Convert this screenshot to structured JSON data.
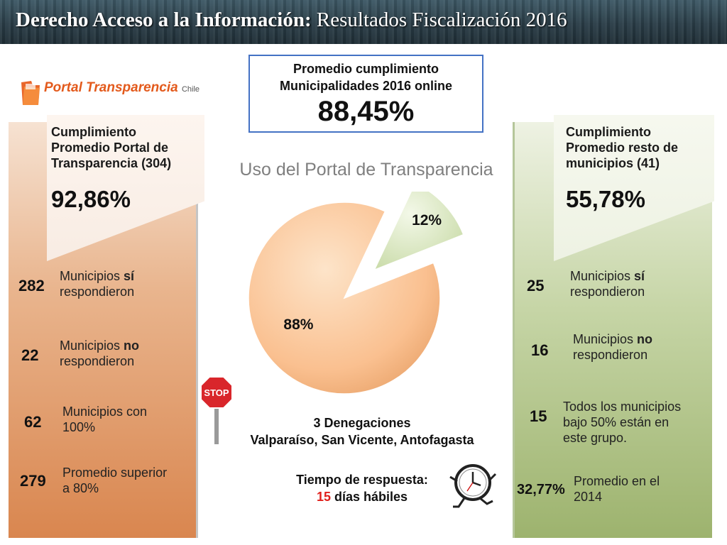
{
  "header": {
    "title_bold": "Derecho Acceso a la Información:",
    "title_rest": " Resultados Fiscalización 2016"
  },
  "logo": {
    "text": "Portal Transparencia",
    "sub": "Chile"
  },
  "average_box": {
    "title_line1": "Promedio cumplimiento",
    "title_line2": "Municipalidades 2016 online",
    "value": "88,45%"
  },
  "left_panel": {
    "title_lines": [
      "Cumplimiento",
      "Promedio Portal de",
      "Transparencia (304)"
    ],
    "percent": "92,86%",
    "stats": [
      {
        "number": "282",
        "pre": "Municipios ",
        "emph": "sí",
        "post": "",
        "line2": "respondieron"
      },
      {
        "number": "22",
        "pre": "Municipios ",
        "emph": "no",
        "post": "",
        "line2": "respondieron"
      },
      {
        "number": "62",
        "pre": "Municipios con",
        "emph": "",
        "post": "",
        "line2": "100%"
      },
      {
        "number": "279",
        "pre": "Promedio superior",
        "emph": "",
        "post": "",
        "line2": "a 80%"
      }
    ]
  },
  "right_panel": {
    "title_lines": [
      "Cumplimiento",
      "Promedio resto de",
      "municipios (41)"
    ],
    "percent": "55,78%",
    "stats": [
      {
        "number": "25",
        "pre": "Municipios ",
        "emph": "sí",
        "line2": "respondieron",
        "line3": ""
      },
      {
        "number": "16",
        "pre": "Municipios ",
        "emph": "no",
        "line2": "respondieron",
        "line3": ""
      },
      {
        "number": "15",
        "pre": "Todos los municipios",
        "emph": "",
        "line2": "bajo 50% están en",
        "line3": "este grupo."
      },
      {
        "number": "32,77%",
        "pre": "Promedio en el",
        "emph": "",
        "line2": "2014",
        "line3": ""
      }
    ]
  },
  "chart_data": {
    "type": "pie",
    "title": "Uso del Portal de Transparencia",
    "slices": [
      {
        "label": "88%",
        "value": 88,
        "color": "#fac090"
      },
      {
        "label": "12%",
        "value": 12,
        "color": "#d7e4bd"
      }
    ]
  },
  "stop_sign": {
    "text": "STOP"
  },
  "denials": {
    "line1": "3 Denegaciones",
    "line2": "Valparaíso, San Vicente, Antofagasta"
  },
  "response_time": {
    "line1": "Tiempo de respuesta:",
    "number": "15",
    "unit": " días hábiles"
  },
  "icons": [
    "portal-transparencia-logo",
    "stop-sign-icon",
    "running-clock-icon"
  ]
}
